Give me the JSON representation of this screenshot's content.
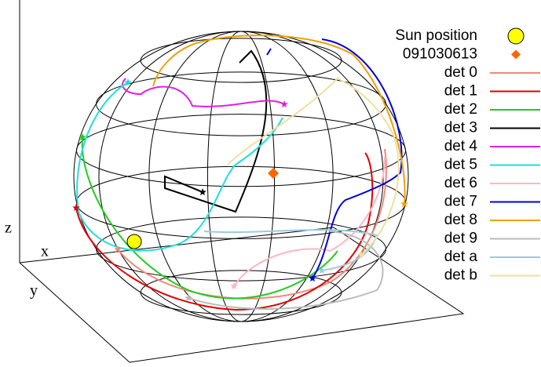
{
  "axes": {
    "x": "x",
    "y": "y",
    "z": "z"
  },
  "legend": [
    {
      "name": "Sun position",
      "color": "#ffff00",
      "marker": "circle"
    },
    {
      "name": "091030613",
      "color": "#ff6600",
      "marker": "diamond"
    },
    {
      "name": "det 0",
      "color": "#f4877a"
    },
    {
      "name": "det 1",
      "color": "#e00000"
    },
    {
      "name": "det 2",
      "color": "#22cc22"
    },
    {
      "name": "det 3",
      "color": "#000000"
    },
    {
      "name": "det 4",
      "color": "#e020e0"
    },
    {
      "name": "det 5",
      "color": "#22dddd"
    },
    {
      "name": "det 6",
      "color": "#ffb6c1"
    },
    {
      "name": "det 7",
      "color": "#0000dd"
    },
    {
      "name": "det 8",
      "color": "#f0a000"
    },
    {
      "name": "det 9",
      "color": "#bbbbbb"
    },
    {
      "name": "det a",
      "color": "#99ccdd"
    },
    {
      "name": "det b",
      "color": "#eee0a0"
    }
  ]
}
